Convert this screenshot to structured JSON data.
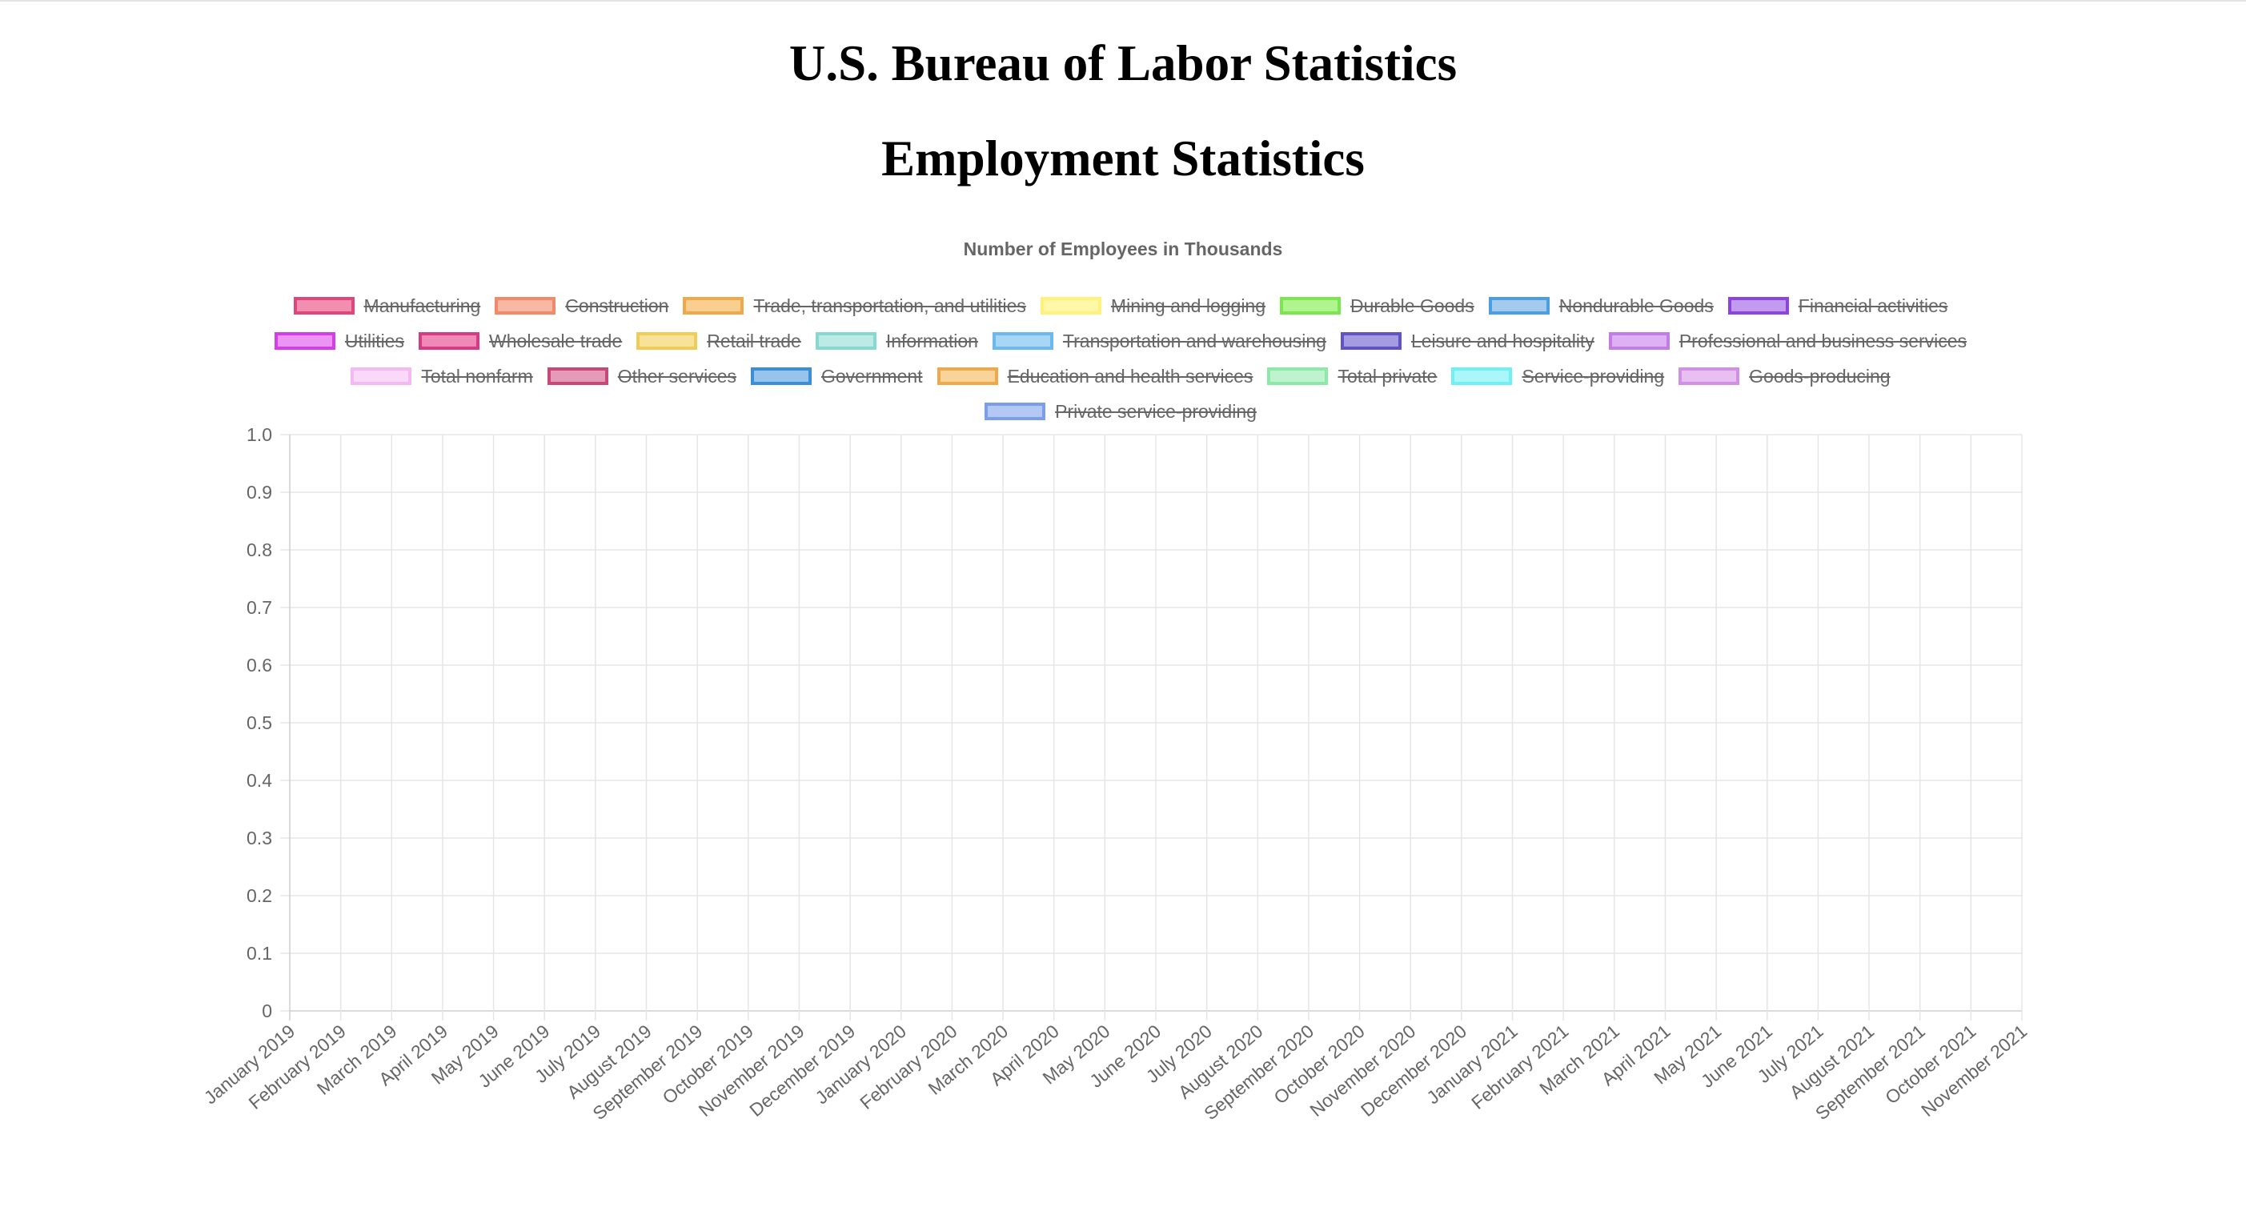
{
  "header": {
    "title": "U.S. Bureau of Labor Statistics",
    "subtitle": "Employment Statistics"
  },
  "chart_data": {
    "type": "line",
    "title": "Number of Employees in Thousands",
    "xlabel": "",
    "ylabel": "",
    "ylim": [
      0,
      1.0
    ],
    "yticks": [
      "0",
      "0.1",
      "0.2",
      "0.3",
      "0.4",
      "0.5",
      "0.6",
      "0.7",
      "0.8",
      "0.9",
      "1.0"
    ],
    "grid": true,
    "legend_position": "top",
    "categories": [
      "January 2019",
      "February 2019",
      "March 2019",
      "April 2019",
      "May 2019",
      "June 2019",
      "July 2019",
      "August 2019",
      "September 2019",
      "October 2019",
      "November 2019",
      "December 2019",
      "January 2020",
      "February 2020",
      "March 2020",
      "April 2020",
      "May 2020",
      "June 2020",
      "July 2020",
      "August 2020",
      "September 2020",
      "October 2020",
      "November 2020",
      "December 2020",
      "January 2021",
      "February 2021",
      "March 2021",
      "April 2021",
      "May 2021",
      "June 2021",
      "July 2021",
      "August 2021",
      "September 2021",
      "October 2021",
      "November 2021"
    ],
    "series": [
      {
        "name": "Manufacturing",
        "border": "#e0457b",
        "fill": "#f28fb0",
        "hidden": true
      },
      {
        "name": "Construction",
        "border": "#f08a6a",
        "fill": "#f7b9a3",
        "hidden": true
      },
      {
        "name": "Trade, transportation, and utilities",
        "border": "#f0a94a",
        "fill": "#f8cf91",
        "hidden": true
      },
      {
        "name": "Mining and logging",
        "border": "#fff27a",
        "fill": "#fff8a8",
        "hidden": true
      },
      {
        "name": "Durable Goods",
        "border": "#7ae74f",
        "fill": "#b0f48f",
        "hidden": true
      },
      {
        "name": "Nondurable Goods",
        "border": "#4b9ee0",
        "fill": "#a4cbee",
        "hidden": true
      },
      {
        "name": "Financial activities",
        "border": "#8b44e0",
        "fill": "#c29bf0",
        "hidden": true
      },
      {
        "name": "Utilities",
        "border": "#d43ee8",
        "fill": "#ec94f4",
        "hidden": true
      },
      {
        "name": "Wholesale trade",
        "border": "#d63c82",
        "fill": "#ef8ab8",
        "hidden": true
      },
      {
        "name": "Retail trade",
        "border": "#f0cb55",
        "fill": "#f8e29b",
        "hidden": true
      },
      {
        "name": "Information",
        "border": "#86d9cf",
        "fill": "#bdeae4",
        "hidden": true
      },
      {
        "name": "Transportation and warehousing",
        "border": "#6bb9ee",
        "fill": "#a9d6f6",
        "hidden": true
      },
      {
        "name": "Leisure and hospitality",
        "border": "#6153c6",
        "fill": "#a49be0",
        "hidden": true
      },
      {
        "name": "Professional and business services",
        "border": "#c27ce8",
        "fill": "#dcb2f3",
        "hidden": true
      },
      {
        "name": "Total nonfarm",
        "border": "#f4b9f2",
        "fill": "#f9d9f8",
        "hidden": true
      },
      {
        "name": "Other services",
        "border": "#c8487a",
        "fill": "#e39bb7",
        "hidden": true
      },
      {
        "name": "Government",
        "border": "#3c8fd4",
        "fill": "#98c3ea",
        "hidden": true
      },
      {
        "name": "Education and health services",
        "border": "#f0a94a",
        "fill": "#f8d39a",
        "hidden": true
      },
      {
        "name": "Total private",
        "border": "#8ceaa8",
        "fill": "#bff3cd",
        "hidden": true
      },
      {
        "name": "Service-providing",
        "border": "#6ef0f4",
        "fill": "#aaf6f8",
        "hidden": true
      },
      {
        "name": "Goods-producing",
        "border": "#d38fe6",
        "fill": "#e7bff1",
        "hidden": true
      },
      {
        "name": "Private service-providing",
        "border": "#7c9ee8",
        "fill": "#b3c8f2",
        "hidden": true
      }
    ]
  }
}
